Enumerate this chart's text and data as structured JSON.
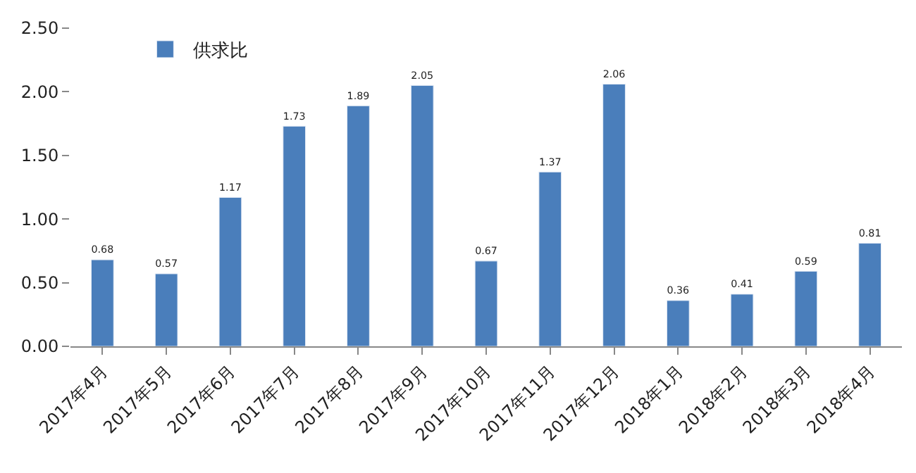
{
  "chart_data": {
    "type": "bar",
    "categories": [
      "2017年4月",
      "2017年5月",
      "2017年6月",
      "2017年7月",
      "2017年8月",
      "2017年9月",
      "2017年10月",
      "2017年11月",
      "2017年12月",
      "2018年1月",
      "2018年2月",
      "2018年3月",
      "2018年4月"
    ],
    "series": [
      {
        "name": "供求比",
        "color": "#4a7ebb",
        "values": [
          0.68,
          0.57,
          1.17,
          1.73,
          1.89,
          2.05,
          0.67,
          1.37,
          2.06,
          0.36,
          0.41,
          0.59,
          0.81
        ]
      }
    ],
    "ylim": [
      0,
      2.5
    ],
    "yticks": [
      {
        "value": 0,
        "label": "0.00"
      },
      {
        "value": 0.5,
        "label": "0.50"
      },
      {
        "value": 1,
        "label": "1.00"
      },
      {
        "value": 1.5,
        "label": "1.50"
      },
      {
        "value": 2,
        "label": "2.00"
      },
      {
        "value": 2.5,
        "label": "2.50"
      }
    ],
    "data_labels": true,
    "grid": false,
    "legend": "top left"
  }
}
